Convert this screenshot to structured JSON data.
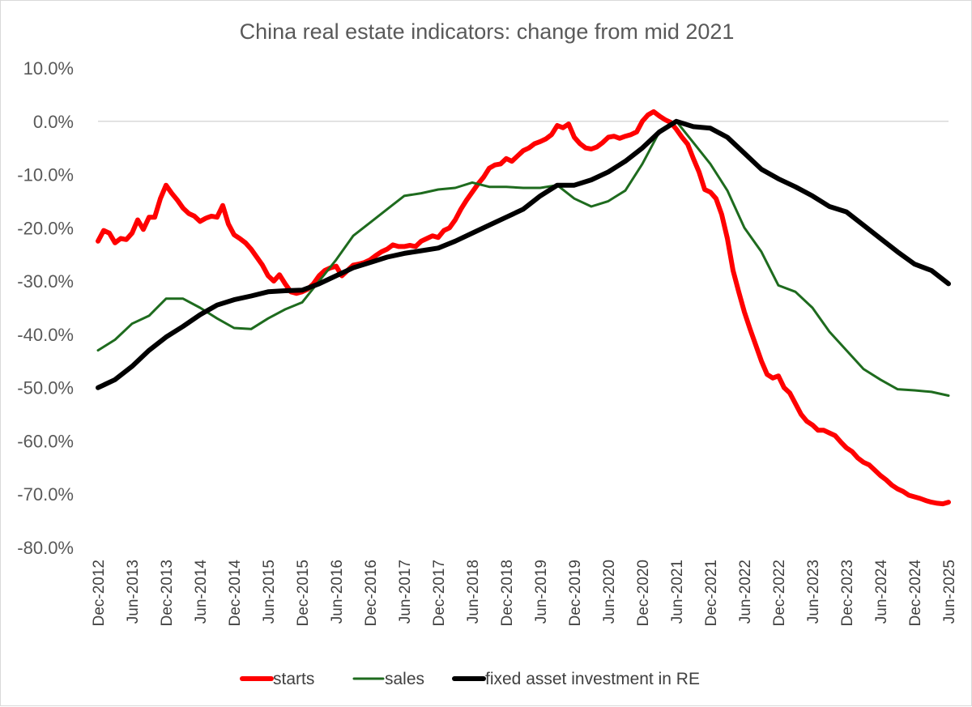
{
  "chart_data": {
    "type": "line",
    "title": "China real estate indicators: change from mid 2021",
    "xlabel": "",
    "ylabel": "",
    "ylim": [
      -80,
      10
    ],
    "y_ticks": [
      "10.0%",
      "0.0%",
      "-10.0%",
      "-20.0%",
      "-30.0%",
      "-40.0%",
      "-50.0%",
      "-60.0%",
      "-70.0%",
      "-80.0%"
    ],
    "x_tick_labels": [
      "Dec-2012",
      "Jun-2013",
      "Dec-2013",
      "Jun-2014",
      "Dec-2014",
      "Jun-2015",
      "Dec-2015",
      "Jun-2016",
      "Dec-2016",
      "Jun-2017",
      "Dec-2017",
      "Jun-2018",
      "Dec-2018",
      "Jun-2019",
      "Dec-2019",
      "Jun-2020",
      "Dec-2020",
      "Jun-2021",
      "Dec-2021",
      "Jun-2022",
      "Dec-2022",
      "Jun-2023",
      "Dec-2023",
      "Jun-2024",
      "Dec-2024",
      "Jun-2025"
    ],
    "x_range": [
      "2012-12",
      "2025-06"
    ],
    "grid": "horizontal zero line only",
    "legend_position": "bottom",
    "series": [
      {
        "name": "starts",
        "color": "#ff0000",
        "points": [
          [
            "2012-12",
            -22.5
          ],
          [
            "2013-01",
            -20.5
          ],
          [
            "2013-02",
            -21.0
          ],
          [
            "2013-03",
            -22.8
          ],
          [
            "2013-04",
            -22.0
          ],
          [
            "2013-05",
            -22.2
          ],
          [
            "2013-06",
            -21.0
          ],
          [
            "2013-07",
            -18.5
          ],
          [
            "2013-08",
            -20.3
          ],
          [
            "2013-09",
            -18.0
          ],
          [
            "2013-10",
            -18.0
          ],
          [
            "2013-11",
            -14.5
          ],
          [
            "2013-12",
            -12.0
          ],
          [
            "2014-01",
            -13.5
          ],
          [
            "2014-02",
            -14.8
          ],
          [
            "2014-03",
            -16.3
          ],
          [
            "2014-04",
            -17.3
          ],
          [
            "2014-05",
            -17.8
          ],
          [
            "2014-06",
            -18.8
          ],
          [
            "2014-07",
            -18.2
          ],
          [
            "2014-08",
            -17.8
          ],
          [
            "2014-09",
            -18.0
          ],
          [
            "2014-10",
            -15.8
          ],
          [
            "2014-11",
            -19.3
          ],
          [
            "2014-12",
            -21.3
          ],
          [
            "2015-01",
            -22.0
          ],
          [
            "2015-02",
            -22.8
          ],
          [
            "2015-03",
            -24.0
          ],
          [
            "2015-04",
            -25.5
          ],
          [
            "2015-05",
            -27.0
          ],
          [
            "2015-06",
            -29.0
          ],
          [
            "2015-07",
            -30.0
          ],
          [
            "2015-08",
            -28.8
          ],
          [
            "2015-09",
            -30.5
          ],
          [
            "2015-10",
            -32.0
          ],
          [
            "2015-11",
            -32.3
          ],
          [
            "2015-12",
            -32.0
          ],
          [
            "2016-01",
            -31.5
          ],
          [
            "2016-02",
            -30.5
          ],
          [
            "2016-03",
            -29.0
          ],
          [
            "2016-04",
            -28.0
          ],
          [
            "2016-05",
            -27.5
          ],
          [
            "2016-06",
            -27.2
          ],
          [
            "2016-07",
            -29.0
          ],
          [
            "2016-08",
            -28.0
          ],
          [
            "2016-09",
            -27.0
          ],
          [
            "2016-10",
            -26.8
          ],
          [
            "2016-11",
            -26.5
          ],
          [
            "2016-12",
            -26.0
          ],
          [
            "2017-01",
            -25.2
          ],
          [
            "2017-02",
            -24.5
          ],
          [
            "2017-03",
            -24.0
          ],
          [
            "2017-04",
            -23.2
          ],
          [
            "2017-05",
            -23.5
          ],
          [
            "2017-06",
            -23.5
          ],
          [
            "2017-07",
            -23.3
          ],
          [
            "2017-08",
            -23.5
          ],
          [
            "2017-09",
            -22.5
          ],
          [
            "2017-10",
            -22.0
          ],
          [
            "2017-11",
            -21.5
          ],
          [
            "2017-12",
            -21.8
          ],
          [
            "2018-01",
            -20.5
          ],
          [
            "2018-02",
            -20.0
          ],
          [
            "2018-03",
            -18.5
          ],
          [
            "2018-04",
            -16.5
          ],
          [
            "2018-05",
            -14.8
          ],
          [
            "2018-06",
            -13.3
          ],
          [
            "2018-07",
            -11.8
          ],
          [
            "2018-08",
            -10.5
          ],
          [
            "2018-09",
            -8.8
          ],
          [
            "2018-10",
            -8.2
          ],
          [
            "2018-11",
            -8.0
          ],
          [
            "2018-12",
            -7.0
          ],
          [
            "2019-01",
            -7.5
          ],
          [
            "2019-02",
            -6.5
          ],
          [
            "2019-03",
            -5.5
          ],
          [
            "2019-04",
            -5.0
          ],
          [
            "2019-05",
            -4.2
          ],
          [
            "2019-06",
            -3.8
          ],
          [
            "2019-07",
            -3.3
          ],
          [
            "2019-08",
            -2.5
          ],
          [
            "2019-09",
            -0.8
          ],
          [
            "2019-10",
            -1.2
          ],
          [
            "2019-11",
            -0.5
          ],
          [
            "2019-12",
            -3.0
          ],
          [
            "2020-01",
            -4.2
          ],
          [
            "2020-02",
            -5.0
          ],
          [
            "2020-03",
            -5.2
          ],
          [
            "2020-04",
            -4.8
          ],
          [
            "2020-05",
            -4.0
          ],
          [
            "2020-06",
            -3.0
          ],
          [
            "2020-07",
            -2.8
          ],
          [
            "2020-08",
            -3.2
          ],
          [
            "2020-09",
            -2.8
          ],
          [
            "2020-10",
            -2.5
          ],
          [
            "2020-11",
            -2.0
          ],
          [
            "2020-12",
            0.0
          ],
          [
            "2021-01",
            1.2
          ],
          [
            "2021-02",
            1.8
          ],
          [
            "2021-03",
            1.0
          ],
          [
            "2021-04",
            0.3
          ],
          [
            "2021-05",
            -0.2
          ],
          [
            "2021-06",
            -1.5
          ],
          [
            "2021-07",
            -3.0
          ],
          [
            "2021-08",
            -4.3
          ],
          [
            "2021-09",
            -7.0
          ],
          [
            "2021-10",
            -9.5
          ],
          [
            "2021-11",
            -12.8
          ],
          [
            "2021-12",
            -13.3
          ],
          [
            "2022-01",
            -14.5
          ],
          [
            "2022-02",
            -17.5
          ],
          [
            "2022-03",
            -22.0
          ],
          [
            "2022-04",
            -28.0
          ],
          [
            "2022-05",
            -32.0
          ],
          [
            "2022-06",
            -35.8
          ],
          [
            "2022-07",
            -39.0
          ],
          [
            "2022-08",
            -42.0
          ],
          [
            "2022-09",
            -45.0
          ],
          [
            "2022-10",
            -47.5
          ],
          [
            "2022-11",
            -48.2
          ],
          [
            "2022-12",
            -47.8
          ],
          [
            "2023-01",
            -50.0
          ],
          [
            "2023-02",
            -51.0
          ],
          [
            "2023-03",
            -53.0
          ],
          [
            "2023-04",
            -55.0
          ],
          [
            "2023-05",
            -56.3
          ],
          [
            "2023-06",
            -57.0
          ],
          [
            "2023-07",
            -58.0
          ],
          [
            "2023-08",
            -58.0
          ],
          [
            "2023-09",
            -58.5
          ],
          [
            "2023-10",
            -59.0
          ],
          [
            "2023-11",
            -60.2
          ],
          [
            "2023-12",
            -61.3
          ],
          [
            "2024-01",
            -62.0
          ],
          [
            "2024-02",
            -63.2
          ],
          [
            "2024-03",
            -64.0
          ],
          [
            "2024-04",
            -64.5
          ],
          [
            "2024-05",
            -65.5
          ],
          [
            "2024-06",
            -66.5
          ],
          [
            "2024-07",
            -67.3
          ],
          [
            "2024-08",
            -68.3
          ],
          [
            "2024-09",
            -69.0
          ],
          [
            "2024-10",
            -69.5
          ],
          [
            "2024-11",
            -70.2
          ],
          [
            "2024-12",
            -70.5
          ],
          [
            "2025-01",
            -70.8
          ],
          [
            "2025-02",
            -71.2
          ],
          [
            "2025-03",
            -71.5
          ],
          [
            "2025-04",
            -71.7
          ],
          [
            "2025-05",
            -71.8
          ],
          [
            "2025-06",
            -71.5
          ]
        ]
      },
      {
        "name": "sales",
        "color": "#1e6b1e",
        "points": [
          [
            "2012-12",
            -43.0
          ],
          [
            "2013-03",
            -41.0
          ],
          [
            "2013-06",
            -38.0
          ],
          [
            "2013-09",
            -36.5
          ],
          [
            "2013-12",
            -33.3
          ],
          [
            "2014-03",
            -33.3
          ],
          [
            "2014-06",
            -35.0
          ],
          [
            "2014-09",
            -37.0
          ],
          [
            "2014-12",
            -38.8
          ],
          [
            "2015-03",
            -39.0
          ],
          [
            "2015-06",
            -37.0
          ],
          [
            "2015-09",
            -35.3
          ],
          [
            "2015-12",
            -34.0
          ],
          [
            "2016-03",
            -30.0
          ],
          [
            "2016-06",
            -26.0
          ],
          [
            "2016-09",
            -21.5
          ],
          [
            "2016-12",
            -19.0
          ],
          [
            "2017-03",
            -16.5
          ],
          [
            "2017-06",
            -14.0
          ],
          [
            "2017-09",
            -13.5
          ],
          [
            "2017-12",
            -12.8
          ],
          [
            "2018-03",
            -12.5
          ],
          [
            "2018-06",
            -11.5
          ],
          [
            "2018-09",
            -12.3
          ],
          [
            "2018-12",
            -12.3
          ],
          [
            "2019-03",
            -12.5
          ],
          [
            "2019-06",
            -12.5
          ],
          [
            "2019-09",
            -12.0
          ],
          [
            "2019-12",
            -14.5
          ],
          [
            "2020-03",
            -16.0
          ],
          [
            "2020-06",
            -15.0
          ],
          [
            "2020-09",
            -13.0
          ],
          [
            "2020-12",
            -8.0
          ],
          [
            "2021-03",
            -2.0
          ],
          [
            "2021-06",
            0.0
          ],
          [
            "2021-09",
            -4.0
          ],
          [
            "2021-12",
            -8.0
          ],
          [
            "2022-03",
            -13.0
          ],
          [
            "2022-06",
            -20.0
          ],
          [
            "2022-09",
            -24.5
          ],
          [
            "2022-12",
            -30.8
          ],
          [
            "2023-03",
            -32.0
          ],
          [
            "2023-06",
            -35.0
          ],
          [
            "2023-09",
            -39.5
          ],
          [
            "2023-12",
            -43.0
          ],
          [
            "2024-03",
            -46.5
          ],
          [
            "2024-06",
            -48.5
          ],
          [
            "2024-09",
            -50.3
          ],
          [
            "2024-12",
            -50.5
          ],
          [
            "2025-03",
            -50.8
          ],
          [
            "2025-06",
            -51.5
          ]
        ]
      },
      {
        "name": "fixed asset investment in RE",
        "color": "#000000",
        "points": [
          [
            "2012-12",
            -50.0
          ],
          [
            "2013-03",
            -48.5
          ],
          [
            "2013-06",
            -46.0
          ],
          [
            "2013-09",
            -43.0
          ],
          [
            "2013-12",
            -40.5
          ],
          [
            "2014-03",
            -38.5
          ],
          [
            "2014-06",
            -36.3
          ],
          [
            "2014-09",
            -34.5
          ],
          [
            "2014-12",
            -33.5
          ],
          [
            "2015-03",
            -32.8
          ],
          [
            "2015-06",
            -32.0
          ],
          [
            "2015-09",
            -31.8
          ],
          [
            "2015-12",
            -31.7
          ],
          [
            "2016-03",
            -30.5
          ],
          [
            "2016-06",
            -29.0
          ],
          [
            "2016-09",
            -27.5
          ],
          [
            "2016-12",
            -26.5
          ],
          [
            "2017-03",
            -25.5
          ],
          [
            "2017-06",
            -24.8
          ],
          [
            "2017-09",
            -24.3
          ],
          [
            "2017-12",
            -23.8
          ],
          [
            "2018-03",
            -22.5
          ],
          [
            "2018-06",
            -21.0
          ],
          [
            "2018-09",
            -19.5
          ],
          [
            "2018-12",
            -18.0
          ],
          [
            "2019-03",
            -16.5
          ],
          [
            "2019-06",
            -14.0
          ],
          [
            "2019-09",
            -12.0
          ],
          [
            "2019-12",
            -12.0
          ],
          [
            "2020-03",
            -11.0
          ],
          [
            "2020-06",
            -9.5
          ],
          [
            "2020-09",
            -7.5
          ],
          [
            "2020-12",
            -5.0
          ],
          [
            "2021-03",
            -2.0
          ],
          [
            "2021-06",
            0.0
          ],
          [
            "2021-09",
            -1.0
          ],
          [
            "2021-12",
            -1.3
          ],
          [
            "2022-03",
            -3.0
          ],
          [
            "2022-06",
            -6.0
          ],
          [
            "2022-09",
            -9.0
          ],
          [
            "2022-12",
            -10.8
          ],
          [
            "2023-03",
            -12.3
          ],
          [
            "2023-06",
            -14.0
          ],
          [
            "2023-09",
            -16.0
          ],
          [
            "2023-12",
            -17.0
          ],
          [
            "2024-03",
            -19.5
          ],
          [
            "2024-06",
            -22.0
          ],
          [
            "2024-09",
            -24.5
          ],
          [
            "2024-12",
            -26.8
          ],
          [
            "2025-03",
            -28.0
          ],
          [
            "2025-06",
            -30.5
          ]
        ]
      }
    ]
  }
}
